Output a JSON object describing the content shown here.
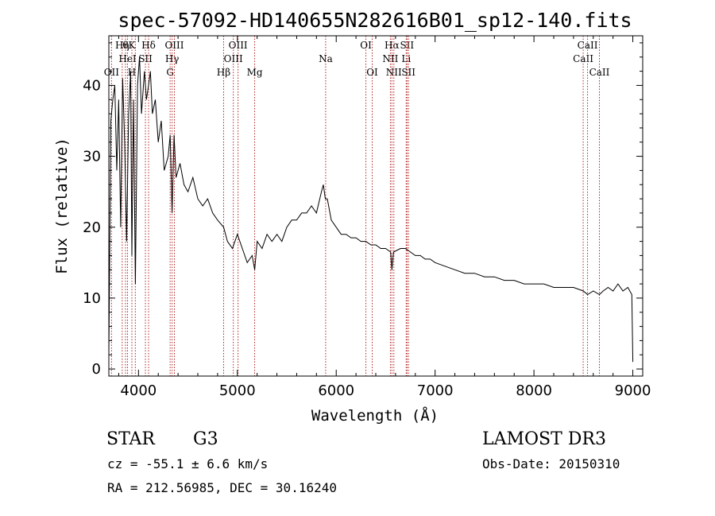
{
  "chart_data": {
    "type": "line",
    "title": "spec-57092-HD140655N282616B01_sp12-140.fits",
    "xlabel": "Wavelength (Å)",
    "ylabel": "Flux (relative)",
    "xlim": [
      3700,
      9100
    ],
    "ylim": [
      -1,
      47
    ],
    "x_ticks": [
      4000,
      5000,
      6000,
      7000,
      8000,
      9000
    ],
    "y_ticks": [
      0,
      10,
      20,
      30,
      40
    ],
    "grid": false,
    "series": [
      {
        "x": [
          3700,
          3720,
          3740,
          3760,
          3780,
          3800,
          3820,
          3840,
          3860,
          3880,
          3900,
          3920,
          3933,
          3950,
          3968,
          3990,
          4010,
          4030,
          4060,
          4080,
          4102,
          4120,
          4140,
          4170,
          4200,
          4230,
          4260,
          4300,
          4320,
          4340,
          4360,
          4380,
          4420,
          4460,
          4500,
          4550,
          4600,
          4650,
          4700,
          4750,
          4800,
          4861,
          4900,
          4950,
          5000,
          5050,
          5100,
          5150,
          5175,
          5200,
          5250,
          5300,
          5350,
          5400,
          5450,
          5500,
          5550,
          5600,
          5650,
          5700,
          5750,
          5800,
          5850,
          5870,
          5890,
          5910,
          5950,
          6000,
          6050,
          6100,
          6150,
          6200,
          6250,
          6300,
          6350,
          6400,
          6450,
          6500,
          6550,
          6563,
          6580,
          6650,
          6700,
          6750,
          6800,
          6850,
          6900,
          6950,
          7000,
          7100,
          7200,
          7300,
          7400,
          7500,
          7600,
          7700,
          7800,
          7900,
          8000,
          8100,
          8200,
          8300,
          8400,
          8500,
          8542,
          8600,
          8662,
          8700,
          8750,
          8800,
          8850,
          8900,
          8950,
          8990,
          9000
        ],
        "y": [
          2,
          35,
          38,
          40,
          28,
          38,
          20,
          41,
          32,
          18,
          36,
          42,
          16,
          38,
          12,
          40,
          44,
          36,
          42,
          38,
          40,
          42,
          36,
          38,
          32,
          35,
          28,
          30,
          33,
          22,
          33,
          27,
          29,
          26,
          25,
          27,
          24,
          23,
          24,
          22,
          21,
          20,
          18,
          17,
          19,
          17,
          15,
          16,
          14,
          18,
          17,
          19,
          18,
          19,
          18,
          20,
          21,
          21,
          22,
          22,
          23,
          22,
          25,
          26,
          24,
          24,
          21,
          20,
          19,
          19,
          18.5,
          18.5,
          18,
          18,
          17.5,
          17.5,
          17,
          17,
          16.5,
          14,
          16.5,
          17,
          17,
          16.5,
          16,
          16,
          15.5,
          15.5,
          15,
          14.5,
          14,
          13.5,
          13.5,
          13,
          13,
          12.5,
          12.5,
          12,
          12,
          12,
          11.5,
          11.5,
          11.5,
          11,
          10.5,
          11,
          10.5,
          11,
          11.5,
          11,
          12,
          11,
          11.5,
          10.5,
          1
        ]
      }
    ],
    "line_markers": [
      {
        "wl": 3727,
        "labels": [
          {
            "text": "OII",
            "row": 3
          }
        ]
      },
      {
        "wl": 3835,
        "labels": [
          {
            "text": "Hη",
            "row": 1
          }
        ]
      },
      {
        "wl": 3869,
        "labels": [
          {
            "text": "θ",
            "row": 1
          }
        ]
      },
      {
        "wl": 3889,
        "labels": [
          {
            "text": "HeI",
            "row": 2
          }
        ]
      },
      {
        "wl": 3933,
        "labels": [
          {
            "text": "K",
            "row": 1
          },
          {
            "text": "H",
            "row": 3
          }
        ]
      },
      {
        "wl": 3968,
        "labels": []
      },
      {
        "wl": 4070,
        "labels": [
          {
            "text": "SII",
            "row": 2
          }
        ]
      },
      {
        "wl": 4102,
        "labels": [
          {
            "text": "Hδ",
            "row": 1
          }
        ]
      },
      {
        "wl": 4320,
        "labels": [
          {
            "text": "G",
            "row": 3
          }
        ]
      },
      {
        "wl": 4340,
        "labels": [
          {
            "text": "Hγ",
            "row": 2
          }
        ]
      },
      {
        "wl": 4363,
        "labels": [
          {
            "text": "OIII",
            "row": 1
          }
        ]
      },
      {
        "wl": 4861,
        "labels": [
          {
            "text": "Hβ",
            "row": 3
          }
        ]
      },
      {
        "wl": 4959,
        "labels": [
          {
            "text": "OIII",
            "row": 2
          }
        ]
      },
      {
        "wl": 5007,
        "labels": [
          {
            "text": "OIII",
            "row": 1
          }
        ]
      },
      {
        "wl": 5175,
        "labels": [
          {
            "text": "Mg",
            "row": 3
          }
        ]
      },
      {
        "wl": 5893,
        "labels": [
          {
            "text": "Na",
            "row": 2
          }
        ]
      },
      {
        "wl": 6300,
        "labels": [
          {
            "text": "OI",
            "row": 1
          }
        ]
      },
      {
        "wl": 6364,
        "labels": [
          {
            "text": "OI",
            "row": 3
          }
        ]
      },
      {
        "wl": 6548,
        "labels": [
          {
            "text": "NII",
            "row": 2
          }
        ]
      },
      {
        "wl": 6563,
        "labels": [
          {
            "text": "Hα",
            "row": 1
          }
        ]
      },
      {
        "wl": 6583,
        "labels": [
          {
            "text": "NII",
            "row": 3
          }
        ]
      },
      {
        "wl": 6708,
        "labels": [
          {
            "text": "Li",
            "row": 2
          }
        ]
      },
      {
        "wl": 6716,
        "labels": [
          {
            "text": "SII",
            "row": 1
          }
        ]
      },
      {
        "wl": 6731,
        "labels": [
          {
            "text": "SII",
            "row": 3
          }
        ]
      },
      {
        "wl": 8498,
        "labels": [
          {
            "text": "CaII",
            "row": 2
          }
        ]
      },
      {
        "wl": 8542,
        "labels": [
          {
            "text": "CaII",
            "row": 1
          }
        ]
      },
      {
        "wl": 8662,
        "labels": [
          {
            "text": "CaII",
            "row": 3
          }
        ]
      }
    ],
    "marker_color": "#b22222"
  },
  "info": {
    "object_class": "STAR",
    "subclass": "G3",
    "survey": "LAMOST DR3",
    "redshift": "cz = -55.1 ± 6.6 km/s",
    "obs_date": "Obs-Date: 20150310",
    "coords": "RA = 212.56985, DEC =  30.16240"
  }
}
